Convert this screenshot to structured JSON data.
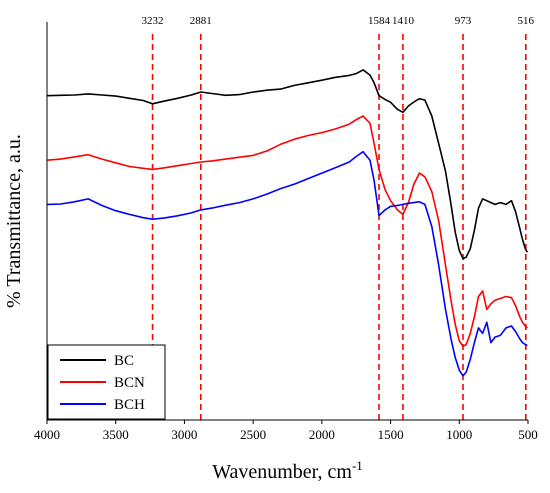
{
  "chart_data": {
    "type": "line",
    "title": "",
    "xlabel": "Wavenumber, cm",
    "xlabel_superscript": "-1",
    "ylabel": "% Transmittance, a.u.",
    "xlim": [
      4000,
      500
    ],
    "x_reversed": true,
    "x_ticks": [
      4000,
      3500,
      3000,
      2500,
      2000,
      1500,
      1000,
      500
    ],
    "y_ticks_shown": false,
    "grid": false,
    "legend_position": "bottom-left",
    "reference_lines": [
      {
        "x": 3232,
        "label": "3232"
      },
      {
        "x": 2881,
        "label": "2881"
      },
      {
        "x": 1584,
        "label": "1584"
      },
      {
        "x": 1410,
        "label": "1410"
      },
      {
        "x": 973,
        "label": "973"
      },
      {
        "x": 516,
        "label": "516"
      }
    ],
    "reference_line_color": "#ff0000",
    "series": [
      {
        "name": "BC",
        "color": "#000000",
        "x": [
          4000,
          3900,
          3800,
          3700,
          3600,
          3500,
          3400,
          3300,
          3232,
          3150,
          3050,
          2950,
          2881,
          2800,
          2700,
          2600,
          2500,
          2400,
          2300,
          2200,
          2100,
          2000,
          1900,
          1800,
          1750,
          1700,
          1650,
          1620,
          1584,
          1540,
          1500,
          1450,
          1410,
          1370,
          1330,
          1290,
          1250,
          1200,
          1150,
          1100,
          1060,
          1030,
          1000,
          973,
          950,
          920,
          890,
          860,
          830,
          800,
          770,
          740,
          700,
          660,
          620,
          590,
          560,
          540,
          520,
          505
        ],
        "y": [
          40.0,
          40.1,
          40.2,
          40.5,
          40.2,
          39.9,
          39.3,
          38.7,
          37.8,
          38.5,
          39.3,
          40.2,
          41.0,
          40.6,
          40.1,
          40.3,
          41.0,
          41.5,
          41.8,
          42.8,
          43.5,
          44.2,
          45.0,
          45.5,
          46.0,
          47.0,
          45.6,
          43.5,
          40.0,
          39.0,
          38.2,
          36.3,
          35.5,
          37.2,
          38.3,
          39.2,
          38.8,
          34.5,
          27.0,
          19.5,
          10.5,
          3.0,
          -2.0,
          -4.2,
          -3.8,
          -1.5,
          3.5,
          9.5,
          12.0,
          11.5,
          11.0,
          10.5,
          11.0,
          10.5,
          11.5,
          8.5,
          4.0,
          1.0,
          -1.5,
          -2.5
        ]
      },
      {
        "name": "BCN",
        "color": "#ff0000",
        "x": [
          4000,
          3900,
          3800,
          3700,
          3600,
          3500,
          3400,
          3300,
          3232,
          3150,
          3050,
          2950,
          2881,
          2800,
          2700,
          2600,
          2500,
          2400,
          2300,
          2200,
          2100,
          2000,
          1900,
          1800,
          1750,
          1700,
          1650,
          1620,
          1584,
          1540,
          1500,
          1450,
          1410,
          1370,
          1330,
          1290,
          1250,
          1200,
          1150,
          1100,
          1060,
          1030,
          1000,
          973,
          950,
          920,
          890,
          860,
          830,
          800,
          770,
          740,
          700,
          660,
          620,
          590,
          560,
          540,
          520,
          505
        ],
        "y": [
          22.5,
          22.8,
          23.4,
          24.0,
          22.8,
          21.8,
          20.8,
          20.3,
          20.0,
          20.4,
          21.0,
          21.6,
          22.0,
          22.3,
          22.8,
          23.3,
          23.8,
          25.0,
          26.8,
          28.2,
          29.2,
          30.0,
          31.0,
          32.3,
          33.5,
          34.5,
          32.5,
          27.0,
          20.0,
          14.5,
          11.5,
          9.0,
          7.8,
          11.0,
          16.0,
          19.0,
          18.0,
          14.0,
          6.0,
          -6.0,
          -15.5,
          -22.0,
          -26.5,
          -28.0,
          -27.5,
          -24.5,
          -20.0,
          -14.5,
          -13.0,
          -18.0,
          -16.5,
          -15.5,
          -15.0,
          -14.5,
          -14.8,
          -17.0,
          -20.0,
          -21.5,
          -22.5,
          -23.0
        ]
      },
      {
        "name": "BCH",
        "color": "#0000ff",
        "x": [
          4000,
          3900,
          3800,
          3700,
          3600,
          3500,
          3400,
          3300,
          3232,
          3150,
          3050,
          2950,
          2881,
          2800,
          2700,
          2600,
          2500,
          2400,
          2300,
          2200,
          2100,
          2000,
          1900,
          1800,
          1750,
          1700,
          1650,
          1620,
          1584,
          1540,
          1500,
          1450,
          1410,
          1370,
          1330,
          1290,
          1250,
          1200,
          1150,
          1100,
          1060,
          1030,
          1000,
          973,
          950,
          920,
          890,
          860,
          830,
          800,
          770,
          740,
          700,
          660,
          620,
          590,
          560,
          540,
          520,
          505
        ],
        "y": [
          10.5,
          10.6,
          11.2,
          12.0,
          10.2,
          8.8,
          7.8,
          6.9,
          6.5,
          6.8,
          7.4,
          8.2,
          9.0,
          9.5,
          10.3,
          11.0,
          12.0,
          13.3,
          14.8,
          16.0,
          17.5,
          19.0,
          20.5,
          22.0,
          23.5,
          24.8,
          22.5,
          17.0,
          7.5,
          9.0,
          10.0,
          10.2,
          10.5,
          10.8,
          11.0,
          11.2,
          10.5,
          4.5,
          -6.0,
          -18.0,
          -26.0,
          -31.0,
          -34.5,
          -36.0,
          -35.0,
          -31.5,
          -27.0,
          -23.0,
          -24.5,
          -21.5,
          -27.0,
          -25.5,
          -25.0,
          -23.0,
          -22.5,
          -24.0,
          -26.0,
          -27.0,
          -27.5,
          -27.8
        ]
      }
    ]
  }
}
